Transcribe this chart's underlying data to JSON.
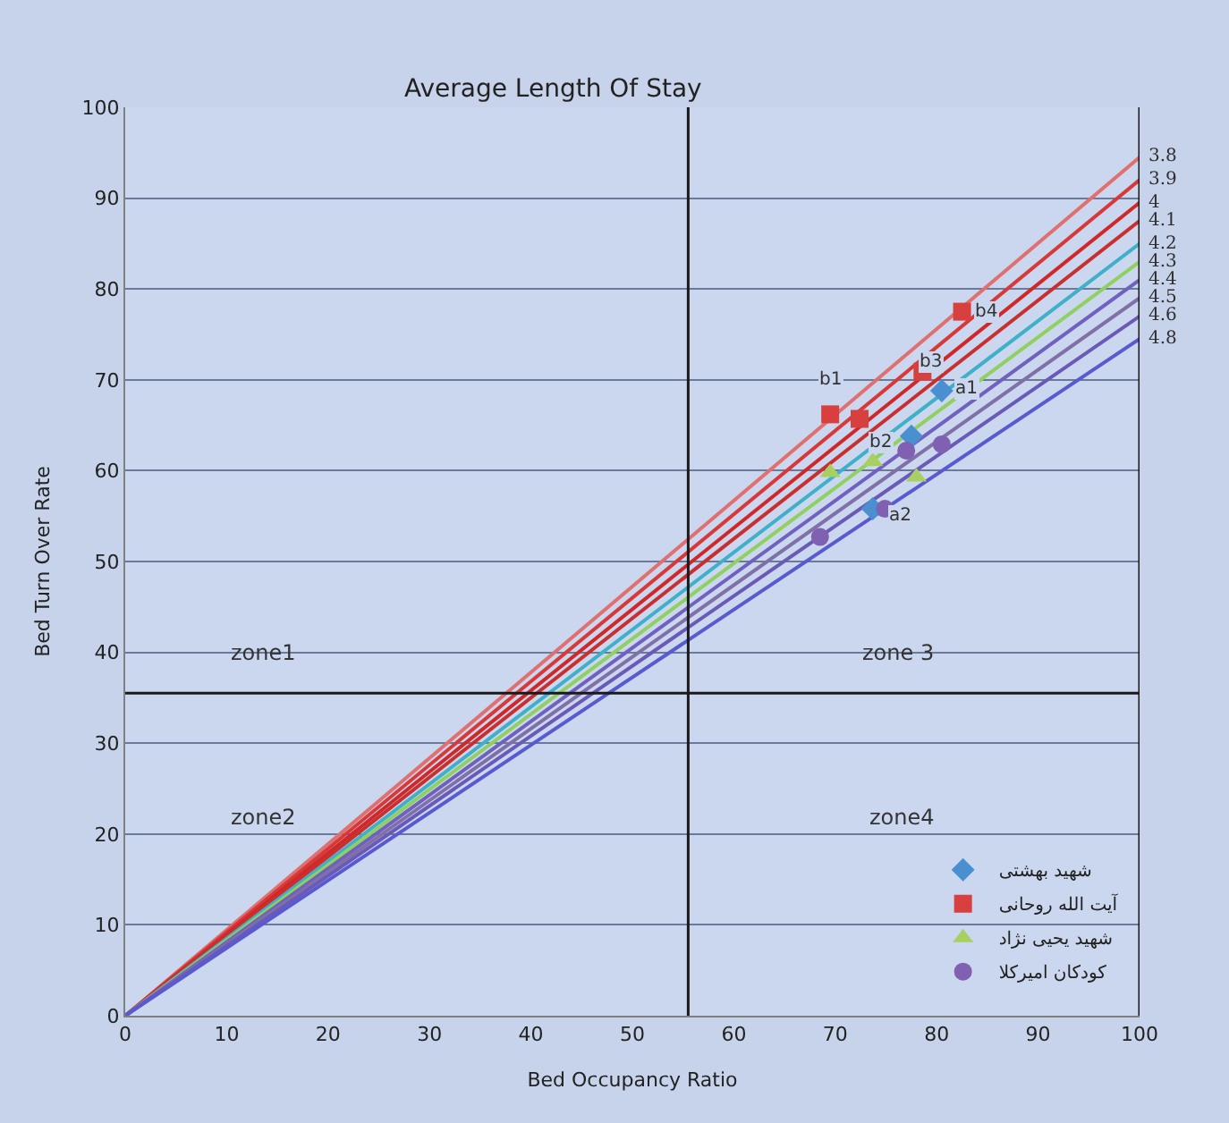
{
  "chart_data": {
    "type": "scatter",
    "title": "Average Length Of Stay",
    "xlabel": "Bed Occupancy Ratio",
    "ylabel": "Bed Turn Over Rate",
    "xlim": [
      0,
      100
    ],
    "xticks": [
      0,
      10,
      20,
      30,
      40,
      50,
      60,
      70,
      80,
      90,
      100
    ],
    "ylim": [
      0,
      100
    ],
    "yticks": [
      0,
      10,
      20,
      30,
      40,
      50,
      60,
      70,
      80,
      90,
      100
    ],
    "grid": "y",
    "legend": "bottom right",
    "series": [
      {
        "type": "line",
        "name": "3.8",
        "color": "#e07070",
        "marker": "none",
        "x": [
          0,
          100
        ],
        "values": [
          0,
          94.5
        ]
      },
      {
        "type": "line",
        "name": "3.9",
        "color": "#d83838",
        "marker": "none",
        "x": [
          0,
          100
        ],
        "values": [
          0,
          92
        ]
      },
      {
        "type": "line",
        "name": "4",
        "color": "#d02828",
        "marker": "none",
        "x": [
          0,
          100
        ],
        "values": [
          0,
          89.5
        ]
      },
      {
        "type": "line",
        "name": "4.1",
        "color": "#c83030",
        "marker": "none",
        "x": [
          0,
          100
        ],
        "values": [
          0,
          87.5
        ]
      },
      {
        "type": "line",
        "name": "4.2",
        "color": "#40b0c8",
        "marker": "none",
        "x": [
          0,
          100
        ],
        "values": [
          0,
          85
        ]
      },
      {
        "type": "line",
        "name": "4.3",
        "color": "#90d060",
        "marker": "none",
        "x": [
          0,
          100
        ],
        "values": [
          0,
          83
        ]
      },
      {
        "type": "line",
        "name": "4.4",
        "color": "#7060c0",
        "marker": "none",
        "x": [
          0,
          100
        ],
        "values": [
          0,
          81
        ]
      },
      {
        "type": "line",
        "name": "4.5",
        "color": "#8070a8",
        "marker": "none",
        "x": [
          0,
          100
        ],
        "values": [
          0,
          79
        ]
      },
      {
        "type": "line",
        "name": "4.6",
        "color": "#6a5ab8",
        "marker": "none",
        "x": [
          0,
          100
        ],
        "values": [
          0,
          77
        ]
      },
      {
        "type": "line",
        "name": "4.8",
        "color": "#5a5ad0",
        "marker": "none",
        "x": [
          0,
          100
        ],
        "values": [
          0,
          74.5
        ]
      },
      {
        "name": "شهید بهشتی",
        "color": "#4a90d0",
        "marker": "diamond",
        "x": [
          80.5,
          73.7,
          77.5
        ],
        "values": [
          68.8,
          55.8,
          63.8
        ]
      },
      {
        "name": "آیت الله روحانی",
        "color": "#d84040",
        "marker": "square",
        "x": [
          69.5,
          72.4,
          78.6,
          82.5
        ],
        "values": [
          66.2,
          65.7,
          70.9,
          77.5
        ]
      },
      {
        "name": "شهید یحیی نژاد",
        "color": "#a8d060",
        "marker": "triangle",
        "x": [
          69.5,
          73.7,
          78
        ],
        "values": [
          59.8,
          61,
          59.3
        ]
      },
      {
        "name": "کودکان امیرکلا",
        "color": "#8060b0",
        "marker": "circle",
        "x": [
          68.5,
          74.9,
          77,
          80.5
        ],
        "values": [
          52.7,
          55.8,
          62.2,
          62.9
        ]
      }
    ],
    "ref_lines": [
      {
        "axis": "x",
        "value": 55.5,
        "color": "#1a1a1a"
      },
      {
        "axis": "y",
        "value": 35.5,
        "color": "#1a1a1a"
      },
      {
        "axis": "x",
        "value": 100,
        "color": "#1a1a1a"
      }
    ],
    "annotations": [
      "zone1",
      "zone 3",
      "zone2",
      "zone4",
      {
        "text": "b1",
        "x": 69.5,
        "y": 70
      },
      {
        "text": "b2",
        "x": 74.5,
        "y": 63
      },
      {
        "text": "b3",
        "x": 79.5,
        "y": 72
      },
      {
        "text": "b4",
        "x": 85,
        "y": 77.5
      },
      {
        "text": "a1",
        "x": 83,
        "y": 69
      },
      {
        "text": "a2",
        "x": 76.5,
        "y": 55
      }
    ]
  }
}
